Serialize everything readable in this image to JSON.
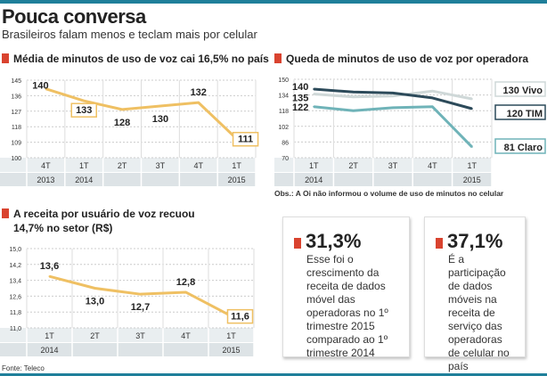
{
  "header": {
    "title": "Pouca conversa",
    "subtitle": "Brasileiros falam menos e teclam mais por celular"
  },
  "colors": {
    "accent": "#d9432f",
    "bar": "#1f7f9a",
    "orange_line": "#efc063",
    "vivo": "#cfd8d8",
    "tim": "#2c4a5a",
    "claro": "#6fb3b8"
  },
  "chart_data": [
    {
      "type": "line",
      "title": "Média de minutos de uso de voz cai 16,5% no país",
      "categories": [
        "4T",
        "1T",
        "2T",
        "3T",
        "4T",
        "1T"
      ],
      "years": [
        "2013",
        "2014",
        "",
        "",
        "",
        "2015"
      ],
      "ylim": [
        100,
        145
      ],
      "yticks": [
        "100",
        "109",
        "118",
        "127",
        "136",
        "145"
      ],
      "grid": true,
      "series": [
        {
          "values": [
            140,
            133,
            128,
            130,
            132,
            111
          ],
          "labels": [
            "140",
            "133",
            "128",
            "130",
            "132",
            "111"
          ]
        }
      ]
    },
    {
      "type": "line",
      "title": "Queda de minutos de uso de voz por operadora",
      "categories": [
        "1T",
        "2T",
        "3T",
        "4T",
        "1T"
      ],
      "years": [
        "2014",
        "",
        "",
        "",
        "2015"
      ],
      "ylim": [
        70,
        150
      ],
      "yticks": [
        "70",
        "86",
        "102",
        "118",
        "134",
        "150"
      ],
      "grid": true,
      "series": [
        {
          "name": "Vivo",
          "values": [
            135,
            132,
            133,
            138,
            130
          ],
          "start_label": "135",
          "end_label": "130 Vivo"
        },
        {
          "name": "TIM",
          "values": [
            140,
            137,
            136,
            131,
            120
          ],
          "start_label": "140",
          "end_label": "120 TIM"
        },
        {
          "name": "Claro",
          "values": [
            122,
            118,
            121,
            122,
            81
          ],
          "start_label": "122",
          "end_label": "81 Claro"
        }
      ],
      "note": "Obs.: A Oi não informou o volume de uso de minutos no celular"
    },
    {
      "type": "line",
      "title": "A receita por usuário de voz recuou",
      "title2": "14,7% no setor (R$)",
      "categories": [
        "1T",
        "2T",
        "3T",
        "4T",
        "1T"
      ],
      "years": [
        "2014",
        "",
        "",
        "",
        "2015"
      ],
      "ylim": [
        11.0,
        15.0
      ],
      "yticks": [
        "11,0",
        "11,8",
        "12,6",
        "13,4",
        "14,2",
        "15,0"
      ],
      "grid": true,
      "series": [
        {
          "values": [
            13.6,
            13.0,
            12.7,
            12.8,
            11.6
          ],
          "labels": [
            "13,6",
            "13,0",
            "12,7",
            "12,8",
            "11,6"
          ]
        }
      ]
    }
  ],
  "source": "Fonte: Teleco",
  "facts": [
    {
      "value": "31,3%",
      "text": "Esse foi o crescimento da receita de dados móvel das operadoras no 1º trimestre 2015 comparado ao 1º trimestre 2014"
    },
    {
      "value": "37,1%",
      "text": "É a participação de dados móveis na receita de serviço das operadoras de celular no país"
    }
  ]
}
